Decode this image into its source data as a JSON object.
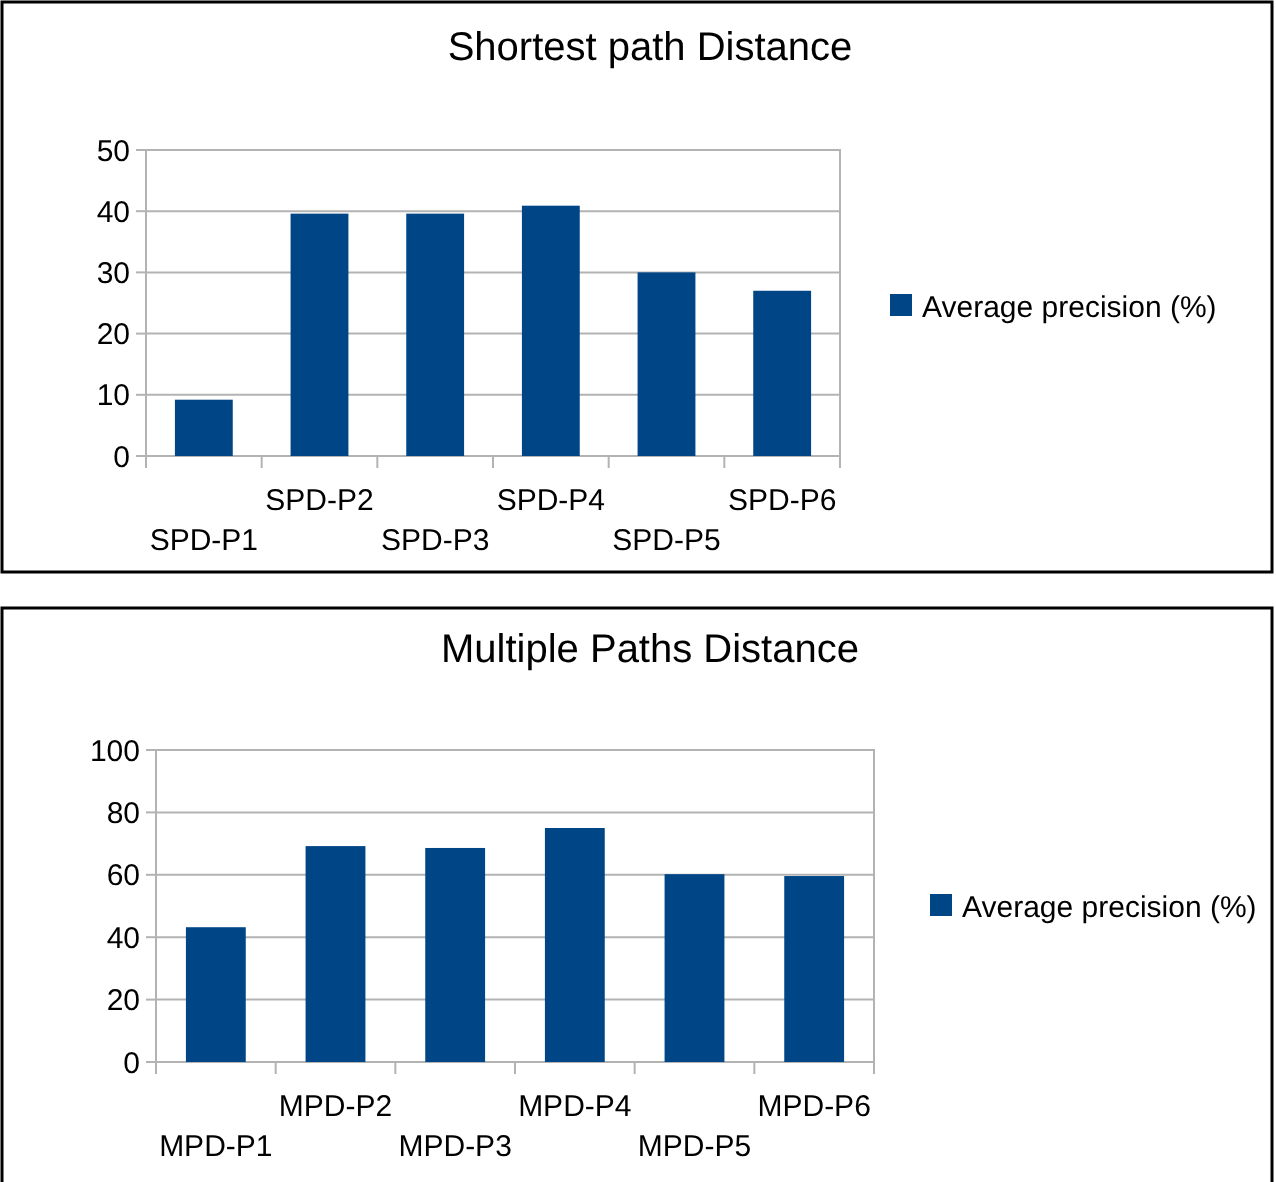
{
  "chart_data": [
    {
      "type": "bar",
      "title": "Shortest path Distance",
      "categories": [
        "SPD-P1",
        "SPD-P2",
        "SPD-P3",
        "SPD-P4",
        "SPD-P5",
        "SPD-P6"
      ],
      "series": [
        {
          "name": "Average precision (%)",
          "color": "#004586",
          "values": [
            9.2,
            39.6,
            39.6,
            40.9,
            30,
            27
          ]
        }
      ],
      "ylim": [
        0,
        50
      ],
      "yticks": [
        0,
        10,
        20,
        30,
        40,
        50
      ],
      "grid": "y",
      "legend": "right"
    },
    {
      "type": "bar",
      "title": "Multiple Paths Distance",
      "categories": [
        "MPD-P1",
        "MPD-P2",
        "MPD-P3",
        "MPD-P4",
        "MPD-P5",
        "MPD-P6"
      ],
      "series": [
        {
          "name": "Average precision (%)",
          "color": "#004586",
          "values": [
            43.2,
            69.2,
            68.6,
            75,
            60.2,
            59.6
          ]
        }
      ],
      "ylim": [
        0,
        100
      ],
      "yticks": [
        0,
        20,
        40,
        60,
        80,
        100
      ],
      "grid": "y",
      "legend": "right"
    }
  ]
}
